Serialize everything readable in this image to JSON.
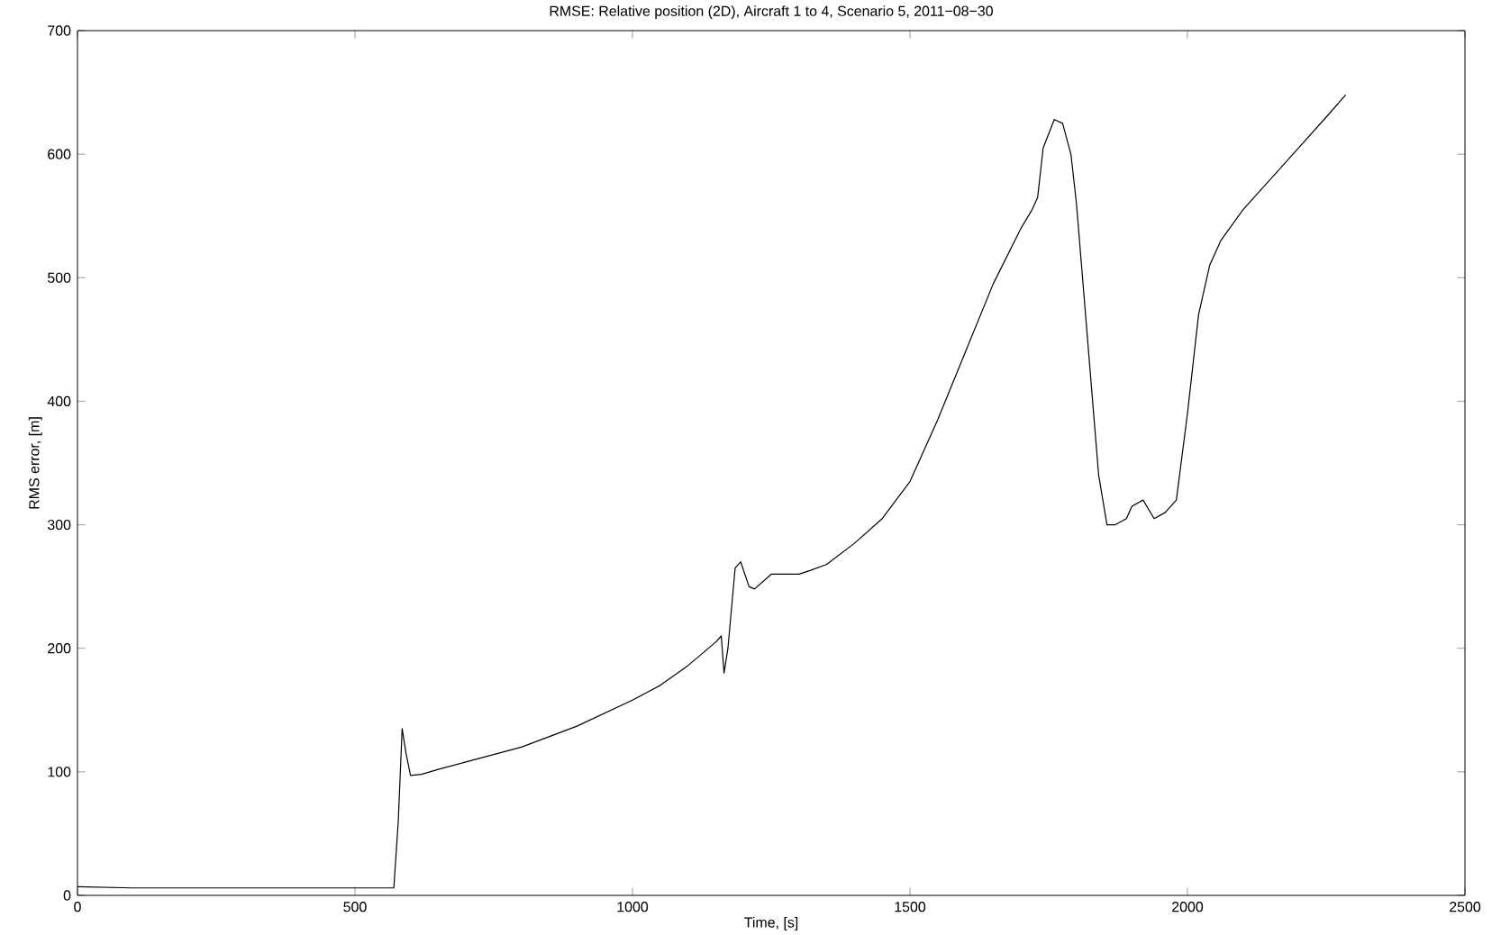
{
  "chart_data": {
    "type": "line",
    "title": "RMSE: Relative position (2D), Aircraft 1 to 4, Scenario 5, 2011−08−30",
    "xlabel": "Time,  [s]",
    "ylabel": "RMS error,  [m]",
    "xlim": [
      0,
      2500
    ],
    "ylim": [
      0,
      700
    ],
    "xticks": [
      0,
      500,
      1000,
      1500,
      2000,
      2500
    ],
    "yticks": [
      0,
      100,
      200,
      300,
      400,
      500,
      600,
      700
    ],
    "series": [
      {
        "color": "#000000",
        "x": [
          0,
          100,
          300,
          500,
          570,
          578,
          585,
          592,
          600,
          620,
          650,
          700,
          800,
          900,
          1000,
          1050,
          1100,
          1150,
          1160,
          1165,
          1172,
          1185,
          1195,
          1210,
          1220,
          1250,
          1300,
          1320,
          1350,
          1400,
          1450,
          1500,
          1550,
          1600,
          1650,
          1700,
          1720,
          1730,
          1740,
          1760,
          1775,
          1790,
          1800,
          1820,
          1840,
          1855,
          1870,
          1890,
          1900,
          1920,
          1940,
          1960,
          1980,
          2000,
          2020,
          2040,
          2060,
          2100,
          2150,
          2200,
          2250,
          2285
        ],
        "values": [
          7,
          6,
          6,
          6,
          6,
          60,
          135,
          115,
          97,
          98,
          102,
          108,
          120,
          137,
          158,
          170,
          186,
          205,
          210,
          180,
          200,
          265,
          270,
          250,
          248,
          260,
          260,
          263,
          268,
          285,
          305,
          335,
          385,
          440,
          495,
          540,
          555,
          565,
          605,
          628,
          625,
          600,
          560,
          450,
          340,
          300,
          300,
          305,
          315,
          320,
          305,
          310,
          320,
          390,
          470,
          510,
          530,
          555,
          580,
          605,
          630,
          648
        ]
      }
    ]
  }
}
